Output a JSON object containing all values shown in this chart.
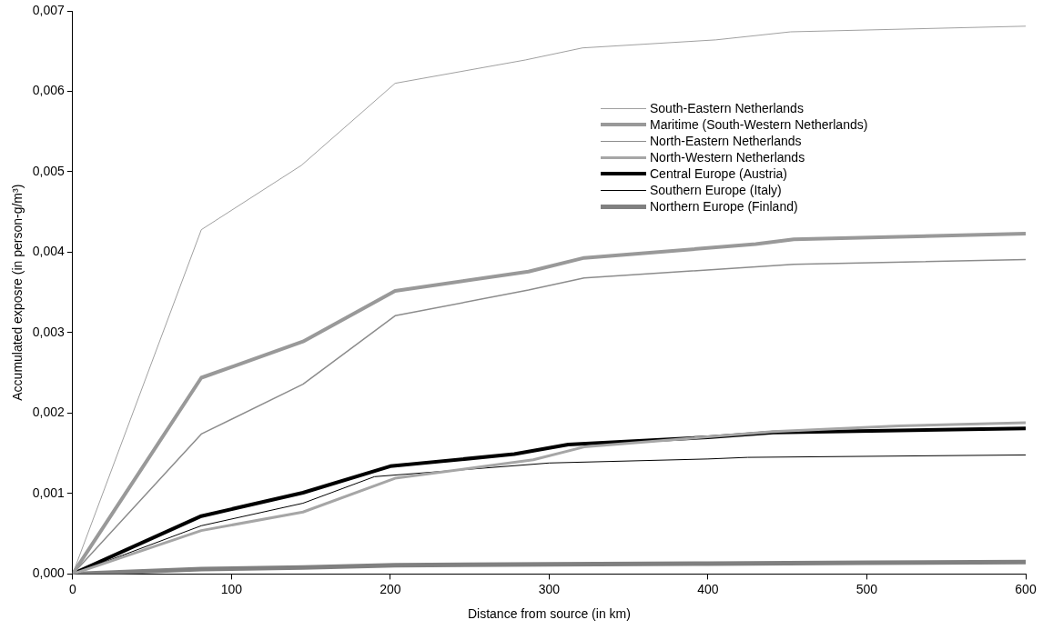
{
  "chart_data": {
    "type": "line",
    "xlabel": "Distance from source (in km)",
    "ylabel": "Accumulated exposre (in person-g/m³)",
    "xlim": [
      0,
      600
    ],
    "xticks": [
      0,
      100,
      200,
      300,
      400,
      500,
      600
    ],
    "ylim": [
      0,
      0.007
    ],
    "yticks": [
      {
        "value": 0,
        "label": "0,000"
      },
      {
        "value": 0.001,
        "label": "0,001"
      },
      {
        "value": 0.002,
        "label": "0,002"
      },
      {
        "value": 0.003,
        "label": "0,003"
      },
      {
        "value": 0.004,
        "label": "0,004"
      },
      {
        "value": 0.005,
        "label": "0,005"
      },
      {
        "value": 0.006,
        "label": "0,006"
      },
      {
        "value": 0.007,
        "label": "0,007"
      }
    ],
    "grid": false,
    "legend": "top right",
    "marker": "none",
    "line_style": "solid",
    "series": [
      {
        "name": "South-Eastern Netherlands",
        "color": "#a0a0a0",
        "x": [
          0,
          81,
          144,
          203,
          285,
          321,
          405,
          452,
          600
        ],
        "values": [
          0,
          0.00428,
          0.00508,
          0.0061,
          0.00639,
          0.00654,
          0.00664,
          0.00674,
          0.00681
        ]
      },
      {
        "name": "Maritime (South-Western Netherlands)",
        "color": "#999999",
        "x": [
          0,
          81,
          145,
          203,
          287,
          322,
          430,
          454,
          600
        ],
        "values": [
          0,
          0.00244,
          0.00289,
          0.00352,
          0.00376,
          0.00393,
          0.0041,
          0.00416,
          0.00423
        ]
      },
      {
        "name": "North-Eastern Netherlands",
        "color": "#8c8c8c",
        "x": [
          0,
          81,
          145,
          203,
          287,
          322,
          454,
          600
        ],
        "values": [
          0,
          0.00174,
          0.00236,
          0.00321,
          0.00353,
          0.00368,
          0.00385,
          0.00391
        ]
      },
      {
        "name": "North-Western Netherlands",
        "color": "#a6a6a6",
        "x": [
          0,
          81,
          145,
          203,
          290,
          322,
          441,
          520,
          600
        ],
        "values": [
          0,
          0.00054,
          0.00077,
          0.00119,
          0.00142,
          0.00158,
          0.00177,
          0.00184,
          0.00188
        ]
      },
      {
        "name": "Central Europe (Austria)",
        "color": "#000000",
        "x": [
          0,
          81,
          145,
          200,
          278,
          312,
          400,
          441,
          600
        ],
        "values": [
          0,
          0.00072,
          0.00101,
          0.00134,
          0.00149,
          0.00161,
          0.0017,
          0.00176,
          0.00181
        ]
      },
      {
        "name": "Southern Europe (Italy)",
        "color": "#000000",
        "x": [
          0,
          81,
          145,
          190,
          300,
          400,
          425,
          600
        ],
        "values": [
          0,
          0.0006,
          0.00088,
          0.00121,
          0.00138,
          0.00143,
          0.00145,
          0.00148
        ]
      },
      {
        "name": "Northern Europe (Finland)",
        "color": "#808080",
        "x": [
          0,
          81,
          145,
          203,
          300,
          400,
          500,
          600
        ],
        "values": [
          0,
          6e-05,
          8e-05,
          0.00011,
          0.00012,
          0.00013,
          0.00014,
          0.00015
        ]
      }
    ]
  }
}
